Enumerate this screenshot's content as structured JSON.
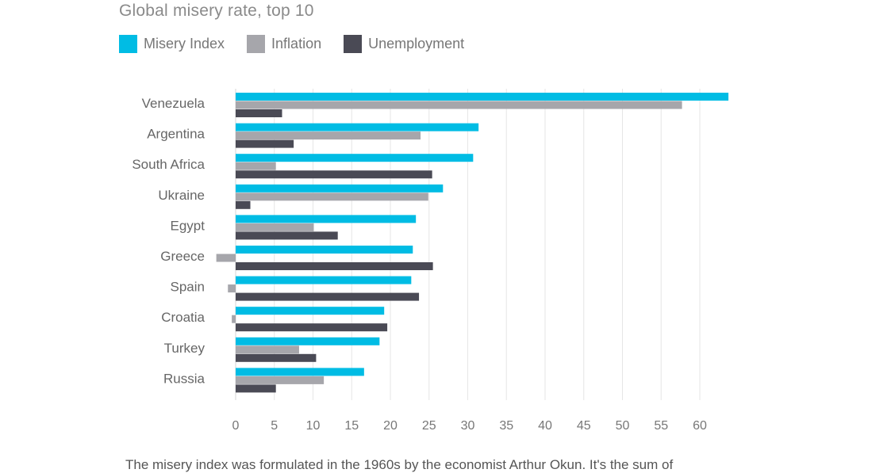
{
  "title": "Global misery rate, top 10",
  "legend": [
    {
      "label": "Misery Index",
      "color": "#00bce4"
    },
    {
      "label": "Inflation",
      "color": "#a6a6ab"
    },
    {
      "label": "Unemployment",
      "color": "#4a4a55"
    }
  ],
  "chart_data": {
    "type": "bar",
    "orientation": "horizontal",
    "categories": [
      "Venezuela",
      "Argentina",
      "South Africa",
      "Ukraine",
      "Egypt",
      "Greece",
      "Spain",
      "Croatia",
      "Turkey",
      "Russia"
    ],
    "series": [
      {
        "name": "Misery Index",
        "color": "#00bce4",
        "values": [
          63.7,
          31.4,
          30.7,
          26.8,
          23.3,
          22.9,
          22.7,
          19.2,
          18.6,
          16.6
        ]
      },
      {
        "name": "Inflation",
        "color": "#a6a6ab",
        "values": [
          57.7,
          23.9,
          5.2,
          24.9,
          10.1,
          -2.5,
          -1.0,
          -0.5,
          8.2,
          11.4
        ]
      },
      {
        "name": "Unemployment",
        "color": "#4a4a55",
        "values": [
          6.0,
          7.5,
          25.4,
          1.9,
          13.2,
          25.5,
          23.7,
          19.6,
          10.4,
          5.2
        ]
      }
    ],
    "xticks": [
      0,
      5,
      10,
      15,
      20,
      25,
      30,
      35,
      40,
      45,
      50,
      55,
      60
    ],
    "xlim": [
      -3,
      65
    ],
    "grid": true,
    "legend_position": "top-left"
  },
  "caption": "The misery index was formulated in the 1960s by the economist Arthur Okun. It's the sum of"
}
